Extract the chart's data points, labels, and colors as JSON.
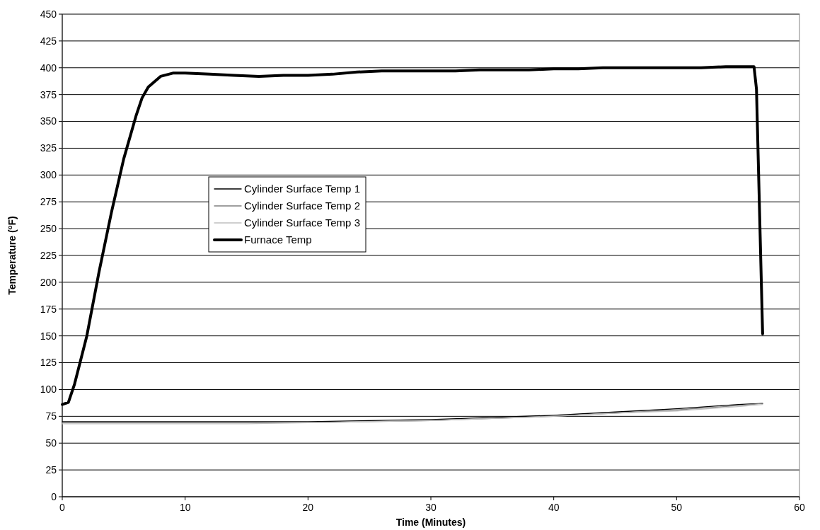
{
  "chart_data": {
    "type": "line",
    "xlabel": "Time (Minutes)",
    "ylabel": "Temperature ($^{o}$F)",
    "xlim": [
      0,
      60
    ],
    "xticks": [
      0,
      10,
      20,
      30,
      40,
      50,
      60
    ],
    "ylim": [
      0,
      450
    ],
    "yticks": [
      0,
      25,
      50,
      75,
      100,
      125,
      150,
      175,
      200,
      225,
      250,
      275,
      300,
      325,
      350,
      375,
      400,
      425,
      450
    ],
    "grid": "y",
    "legend": "left",
    "marker": "none",
    "line_style": "solid",
    "series": [
      {
        "name": "Cylinder Surface Temp 1",
        "color": "#000000",
        "x": [
          0,
          5,
          10,
          15,
          20,
          25,
          30,
          35,
          40,
          45,
          50,
          55,
          57
        ],
        "values": [
          70,
          70,
          70,
          70,
          70,
          71,
          72,
          74,
          76,
          79,
          82,
          86,
          87
        ]
      },
      {
        "name": "Cylinder Surface Temp 2",
        "color": "#808080",
        "x": [
          0,
          5,
          10,
          15,
          20,
          25,
          30,
          35,
          40,
          45,
          50,
          55,
          57
        ],
        "values": [
          69,
          69,
          69,
          69,
          69,
          70,
          71,
          73,
          75,
          78,
          81,
          85,
          87
        ]
      },
      {
        "name": "Cylinder Surface Temp 3",
        "color": "#c0c0c0",
        "x": [
          0,
          5,
          10,
          15,
          20,
          25,
          30,
          35,
          40,
          45,
          50,
          55,
          57
        ],
        "values": [
          68,
          68,
          68,
          68,
          69,
          70,
          71,
          73,
          75,
          78,
          80,
          84,
          86
        ]
      },
      {
        "name": "Furnace Temp",
        "color": "#000000",
        "x": [
          0,
          0.5,
          1,
          2,
          3,
          4,
          5,
          6,
          6.5,
          7,
          8,
          9,
          10,
          12,
          14,
          16,
          18,
          20,
          22,
          24,
          26,
          28,
          30,
          32,
          34,
          36,
          38,
          40,
          42,
          44,
          46,
          48,
          50,
          52,
          54,
          56,
          56.3,
          56.5,
          57
        ],
        "values": [
          86,
          88,
          105,
          150,
          210,
          265,
          315,
          355,
          372,
          382,
          392,
          395,
          395,
          394,
          393,
          392,
          393,
          393,
          394,
          396,
          397,
          397,
          397,
          397,
          398,
          398,
          398,
          399,
          399,
          400,
          400,
          400,
          400,
          400,
          401,
          401,
          401,
          380,
          152
        ]
      }
    ]
  }
}
